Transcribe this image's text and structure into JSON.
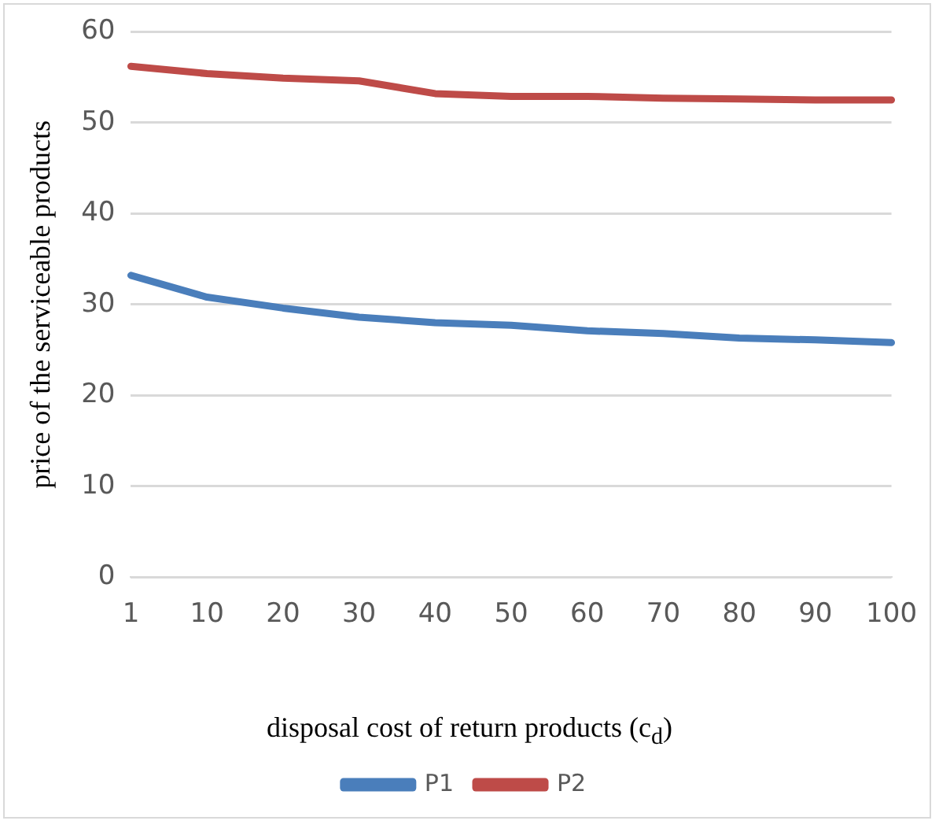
{
  "chart_data": {
    "type": "line",
    "xlabel": "disposal cost of return products (c$_{d}$)",
    "ylabel": "price of the serviceable products",
    "categories": [
      "1",
      "10",
      "20",
      "30",
      "40",
      "50",
      "60",
      "70",
      "80",
      "90",
      "100"
    ],
    "series": [
      {
        "name": "P1",
        "color": "#4a7ebb",
        "values": [
          33.2,
          30.8,
          29.6,
          28.6,
          28.0,
          27.7,
          27.1,
          26.8,
          26.3,
          26.1,
          25.8
        ]
      },
      {
        "name": "P2",
        "color": "#be4b48",
        "values": [
          56.2,
          55.4,
          54.9,
          54.6,
          53.2,
          52.9,
          52.9,
          52.7,
          52.6,
          52.5,
          52.5
        ]
      }
    ],
    "ylim": [
      0,
      60
    ],
    "yticks": [
      0,
      10,
      20,
      30,
      40,
      50,
      60
    ],
    "grid": "y",
    "legend": "bottom",
    "marker": "none",
    "line_style": "solid"
  }
}
